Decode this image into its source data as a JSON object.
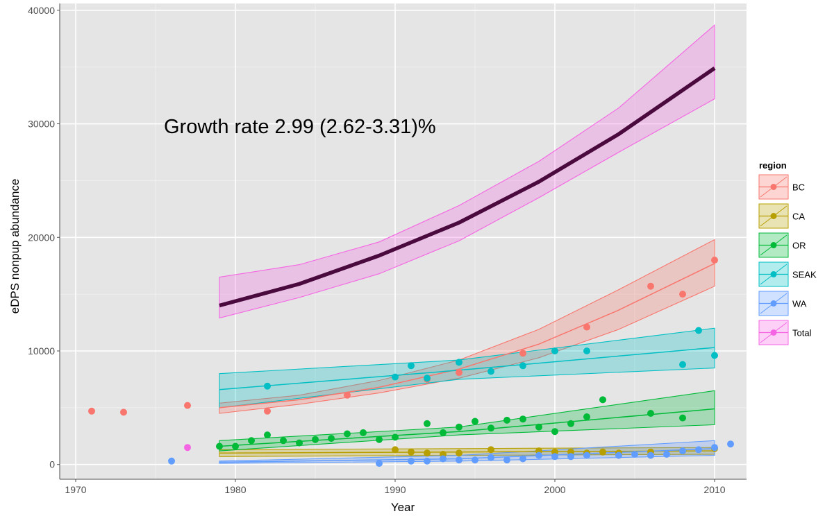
{
  "chart_data": {
    "type": "line",
    "xlabel": "Year",
    "ylabel": "eDPS nonpup abundance",
    "xlim": [
      1969,
      2012
    ],
    "ylim": [
      -1300,
      40600
    ],
    "x_ticks": [
      1970,
      1980,
      1990,
      2000,
      2010
    ],
    "y_ticks": [
      0,
      10000,
      20000,
      30000,
      40000
    ],
    "grid": true,
    "legend_position": "right",
    "legend_title": "region",
    "annotation": "Growth rate 2.99 (2.62-3.31)%",
    "series": [
      {
        "name": "BC",
        "color": "#F8766D",
        "points": [
          [
            1971,
            4700
          ],
          [
            1973,
            4600
          ],
          [
            1977,
            5200
          ],
          [
            1982,
            4700
          ],
          [
            1987,
            6100
          ],
          [
            1992,
            7500
          ],
          [
            1994,
            8100
          ],
          [
            1998,
            9800
          ],
          [
            2002,
            12100
          ],
          [
            2006,
            15700
          ],
          [
            2008,
            15000
          ],
          [
            2010,
            18000
          ]
        ],
        "fit": {
          "x": [
            1979,
            1984,
            1989,
            1994,
            1999,
            2004,
            2010
          ],
          "mid": [
            5000,
            5700,
            6800,
            8400,
            10600,
            13600,
            17700
          ],
          "lower": [
            4500,
            5300,
            6300,
            7600,
            9400,
            11900,
            15700
          ],
          "upper": [
            5400,
            6100,
            7400,
            9200,
            11900,
            15400,
            19800
          ]
        }
      },
      {
        "name": "CA",
        "color": "#B79F00",
        "points": [
          [
            1990,
            1300
          ],
          [
            1991,
            1100
          ],
          [
            1992,
            1000
          ],
          [
            1993,
            900
          ],
          [
            1994,
            1000
          ],
          [
            1996,
            1300
          ],
          [
            1999,
            1200
          ],
          [
            2000,
            1100
          ],
          [
            2001,
            1100
          ],
          [
            2002,
            1000
          ],
          [
            2003,
            1100
          ],
          [
            2004,
            1000
          ],
          [
            2006,
            1100
          ],
          [
            2008,
            1200
          ],
          [
            2010,
            1400
          ]
        ],
        "fit": {
          "x": [
            1979,
            1994,
            2010
          ],
          "mid": [
            1000,
            1100,
            1200
          ],
          "lower": [
            700,
            800,
            900
          ],
          "upper": [
            1300,
            1400,
            1500
          ]
        }
      },
      {
        "name": "OR",
        "color": "#00BA38",
        "points": [
          [
            1979,
            1600
          ],
          [
            1980,
            1600
          ],
          [
            1981,
            2100
          ],
          [
            1982,
            2600
          ],
          [
            1983,
            2100
          ],
          [
            1984,
            1900
          ],
          [
            1985,
            2200
          ],
          [
            1986,
            2300
          ],
          [
            1987,
            2700
          ],
          [
            1988,
            2800
          ],
          [
            1989,
            2200
          ],
          [
            1990,
            2400
          ],
          [
            1992,
            3600
          ],
          [
            1993,
            2800
          ],
          [
            1994,
            3300
          ],
          [
            1995,
            3800
          ],
          [
            1996,
            3200
          ],
          [
            1997,
            3900
          ],
          [
            1998,
            4000
          ],
          [
            1999,
            3300
          ],
          [
            2000,
            2900
          ],
          [
            2001,
            3600
          ],
          [
            2002,
            4200
          ],
          [
            2003,
            5700
          ],
          [
            2006,
            4500
          ],
          [
            2008,
            4100
          ]
        ],
        "fit": {
          "x": [
            1979,
            1994,
            2010
          ],
          "mid": [
            1600,
            2900,
            4900
          ],
          "lower": [
            1200,
            2600,
            3500
          ],
          "upper": [
            2100,
            3300,
            6500
          ]
        }
      },
      {
        "name": "SEAK",
        "color": "#00BFC4",
        "points": [
          [
            1982,
            6900
          ],
          [
            1990,
            7700
          ],
          [
            1991,
            8700
          ],
          [
            1992,
            7600
          ],
          [
            1994,
            9000
          ],
          [
            1996,
            8200
          ],
          [
            1998,
            8700
          ],
          [
            2000,
            10000
          ],
          [
            2002,
            10000
          ],
          [
            2008,
            8800
          ],
          [
            2009,
            11800
          ],
          [
            2010,
            9600
          ]
        ],
        "fit": {
          "x": [
            1979,
            1994,
            2010
          ],
          "mid": [
            6600,
            8300,
            10300
          ],
          "lower": [
            5000,
            7500,
            8500
          ],
          "upper": [
            8000,
            9200,
            12000
          ]
        }
      },
      {
        "name": "WA",
        "color": "#619CFF",
        "points": [
          [
            1976,
            300
          ],
          [
            1989,
            100
          ],
          [
            1991,
            300
          ],
          [
            1992,
            300
          ],
          [
            1993,
            500
          ],
          [
            1994,
            400
          ],
          [
            1995,
            400
          ],
          [
            1996,
            600
          ],
          [
            1997,
            400
          ],
          [
            1998,
            500
          ],
          [
            1999,
            800
          ],
          [
            2000,
            700
          ],
          [
            2001,
            700
          ],
          [
            2002,
            800
          ],
          [
            2004,
            800
          ],
          [
            2005,
            900
          ],
          [
            2006,
            800
          ],
          [
            2007,
            900
          ],
          [
            2008,
            1200
          ],
          [
            2009,
            1300
          ],
          [
            2010,
            1500
          ],
          [
            2011,
            1800
          ]
        ],
        "fit": {
          "x": [
            1979,
            1994,
            2010
          ],
          "mid": [
            200,
            500,
            1400
          ],
          "lower": [
            100,
            300,
            800
          ],
          "upper": [
            300,
            800,
            2100
          ]
        }
      },
      {
        "name": "Total",
        "color": "#F564E3",
        "points": [
          [
            1977,
            1500
          ]
        ],
        "fit": {
          "x": [
            1979,
            1984,
            1989,
            1994,
            1999,
            2004,
            2010
          ],
          "mid": [
            14000,
            15900,
            18400,
            21300,
            24900,
            29100,
            34900
          ],
          "lower": [
            12900,
            14700,
            16800,
            19700,
            23500,
            27500,
            32200
          ],
          "upper": [
            16500,
            17600,
            19600,
            22800,
            26700,
            31400,
            38700
          ]
        }
      }
    ]
  }
}
